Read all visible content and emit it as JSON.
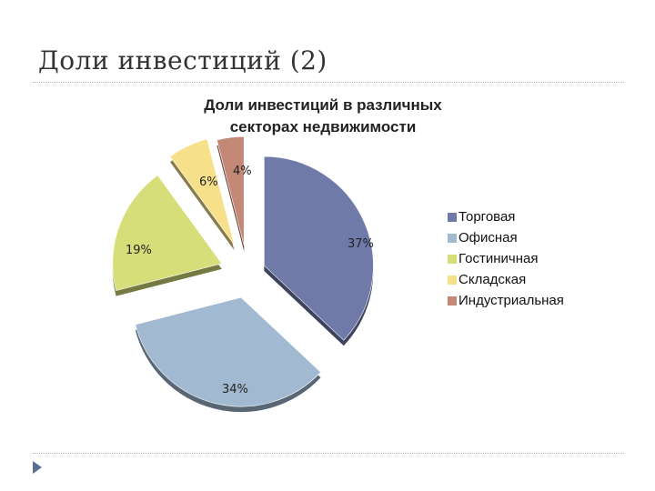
{
  "slide": {
    "title": "Доли инвестиций (2)"
  },
  "colors": {
    "slide_arrow": "#5a6e96",
    "rule": "#b8b8b8"
  },
  "chart_data": {
    "type": "pie",
    "title_lines": [
      "Доли инвестиций в различных",
      "секторах недвижимости"
    ],
    "exploded": true,
    "legend_position": "right",
    "unit": "%",
    "categories": [
      "Торговая",
      "Офисная",
      "Гостиничная",
      "Складская",
      "Индустриальная"
    ],
    "values": [
      37,
      34,
      19,
      6,
      4
    ],
    "labels": [
      "37%",
      "34%",
      "19%",
      "6%",
      "4%"
    ],
    "colors": [
      "#6f7aa8",
      "#a1b9d1",
      "#d5de78",
      "#f6e08a",
      "#c48877"
    ]
  }
}
